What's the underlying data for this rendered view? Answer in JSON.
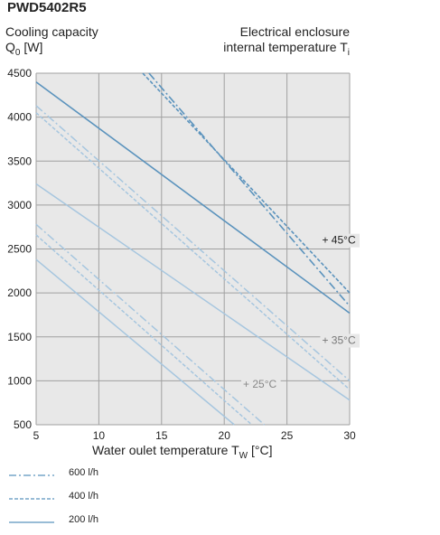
{
  "chart_data": {
    "type": "line",
    "title": "PWD5402R5",
    "ylabel_line1": "Cooling capacity",
    "ylabel_q": "Q",
    "ylabel_sub": "0",
    "ylabel_unit": " [W]",
    "rlabel_line1": "Electrical enclosure",
    "rlabel_line2": "internal temperature T",
    "rlabel_sub": "i",
    "xlabel_main": "Water oulet temperature T",
    "xlabel_sub": "W",
    "xlabel_unit": " [°C]",
    "xlim": [
      5,
      30
    ],
    "ylim": [
      500,
      4500
    ],
    "xticks": [
      "5",
      "10",
      "15",
      "20",
      "25",
      "30"
    ],
    "yticks": [
      "500",
      "1000",
      "1500",
      "2000",
      "2500",
      "3000",
      "3500",
      "4000",
      "4500"
    ],
    "grid": true,
    "annotations": [
      {
        "text": "+ 45°C",
        "x": 27.8,
        "y": 2560,
        "color": "#222222"
      },
      {
        "text": "+ 35°C",
        "x": 27.8,
        "y": 1420,
        "color": "#777777"
      },
      {
        "text": "+ 25°C",
        "x": 21.5,
        "y": 920,
        "color": "#888888"
      }
    ],
    "series": [
      {
        "name": "600 l/h",
        "group": "+45°C",
        "x": [
          14.0,
          30.0
        ],
        "y": [
          4500,
          1850
        ]
      },
      {
        "name": "400 l/h",
        "group": "+45°C",
        "x": [
          13.5,
          30.0
        ],
        "y": [
          4500,
          2000
        ]
      },
      {
        "name": "200 l/h",
        "group": "+45°C",
        "x": [
          5.0,
          30.0
        ],
        "y": [
          4400,
          1770
        ]
      },
      {
        "name": "600 l/h",
        "group": "+35°C",
        "x": [
          5.0,
          30.0
        ],
        "y": [
          4130,
          1000
        ]
      },
      {
        "name": "400 l/h",
        "group": "+35°C",
        "x": [
          5.0,
          30.0
        ],
        "y": [
          4050,
          900
        ]
      },
      {
        "name": "200 l/h",
        "group": "+35°C",
        "x": [
          5.0,
          30.0
        ],
        "y": [
          3240,
          780
        ]
      },
      {
        "name": "600 l/h",
        "group": "+25°C",
        "x": [
          5.0,
          23.2
        ],
        "y": [
          2780,
          500
        ]
      },
      {
        "name": "400 l/h",
        "group": "+25°C",
        "x": [
          5.0,
          22.2
        ],
        "y": [
          2660,
          500
        ]
      },
      {
        "name": "200 l/h",
        "group": "+25°C",
        "x": [
          5.0,
          20.8
        ],
        "y": [
          2380,
          500
        ]
      }
    ],
    "legend": [
      {
        "label": "600 l/h",
        "style": "dashdot"
      },
      {
        "label": "400 l/h",
        "style": "dash"
      },
      {
        "label": "200 l/h",
        "style": "solid"
      }
    ],
    "legend_placement": "bottom-left",
    "colors": {
      "dark": "#5b93bd",
      "light": "#a6c6df",
      "plot_bg": "#e8e8e8",
      "grid": "#a0a0a0"
    }
  }
}
